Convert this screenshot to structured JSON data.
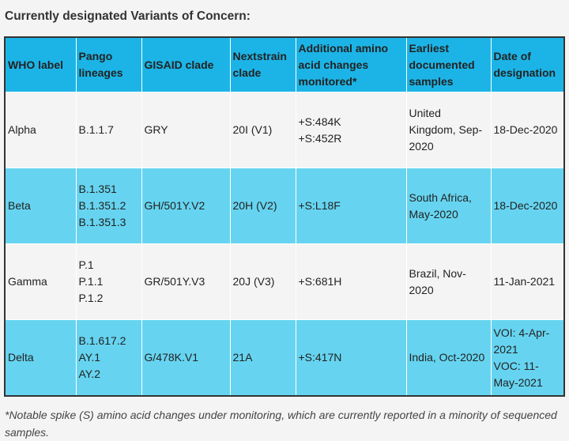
{
  "title": "Currently designated Variants of Concern:",
  "table": {
    "header": [
      "WHO label",
      "Pango lineages",
      "GISAID clade",
      "Nextstrain clade",
      "Additional amino acid changes monitored*",
      "Earliest documented samples",
      "Date of designation"
    ],
    "rows": [
      [
        [
          "Alpha"
        ],
        [
          "B.1.1.7"
        ],
        [
          "GRY"
        ],
        [
          "20I (V1)"
        ],
        [
          "+S:484K",
          "+S:452R"
        ],
        [
          "United Kingdom, Sep-2020"
        ],
        [
          "18-Dec-2020"
        ]
      ],
      [
        [
          "Beta"
        ],
        [
          "B.1.351",
          "B.1.351.2",
          "B.1.351.3"
        ],
        [
          "GH/501Y.V2"
        ],
        [
          "20H (V2)"
        ],
        [
          "+S:L18F"
        ],
        [
          "South Africa, May-2020"
        ],
        [
          "18-Dec-2020"
        ]
      ],
      [
        [
          "Gamma"
        ],
        [
          "P.1",
          "P.1.1",
          "P.1.2"
        ],
        [
          "GR/501Y.V3"
        ],
        [
          "20J (V3)"
        ],
        [
          "+S:681H"
        ],
        [
          "Brazil, Nov-2020"
        ],
        [
          "11-Jan-2021"
        ]
      ],
      [
        [
          "Delta"
        ],
        [
          "B.1.617.2",
          "AY.1",
          "AY.2"
        ],
        [
          "G/478K.V1"
        ],
        [
          "21A"
        ],
        [
          "+S:417N"
        ],
        [
          "India, Oct-2020"
        ],
        [
          "VOI: 4-Apr-2021",
          "VOC: 11-May-2021"
        ]
      ]
    ]
  },
  "footnote": "*Notable spike (S) amino acid changes under monitoring, which are currently reported in a minority of sequenced samples."
}
